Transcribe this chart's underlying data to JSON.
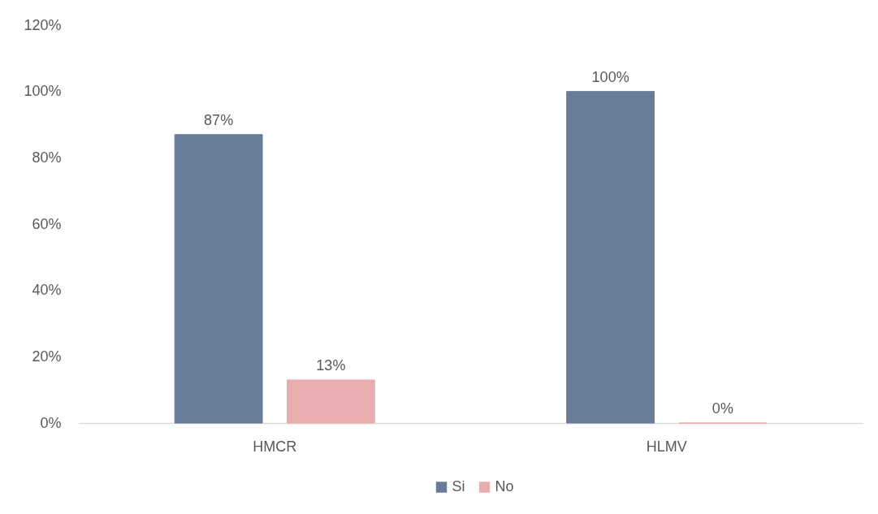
{
  "chart_data": {
    "type": "bar",
    "categories": [
      "HMCR",
      "HLMV"
    ],
    "series": [
      {
        "name": "Si",
        "color": "#687d99",
        "values": [
          87,
          100
        ],
        "value_labels": [
          "87%",
          "100%"
        ]
      },
      {
        "name": "No",
        "color": "#e8adaf",
        "values": [
          13,
          0
        ],
        "value_labels": [
          "13%",
          "0%"
        ]
      }
    ],
    "ylim": [
      0,
      120
    ],
    "yticks": [
      {
        "value": 0,
        "label": "0%"
      },
      {
        "value": 20,
        "label": "20%"
      },
      {
        "value": 40,
        "label": "40%"
      },
      {
        "value": 60,
        "label": "60%"
      },
      {
        "value": 80,
        "label": "80%"
      },
      {
        "value": 100,
        "label": "100%"
      },
      {
        "value": 120,
        "label": "120%"
      }
    ],
    "grid": false,
    "legend": "bottom"
  }
}
